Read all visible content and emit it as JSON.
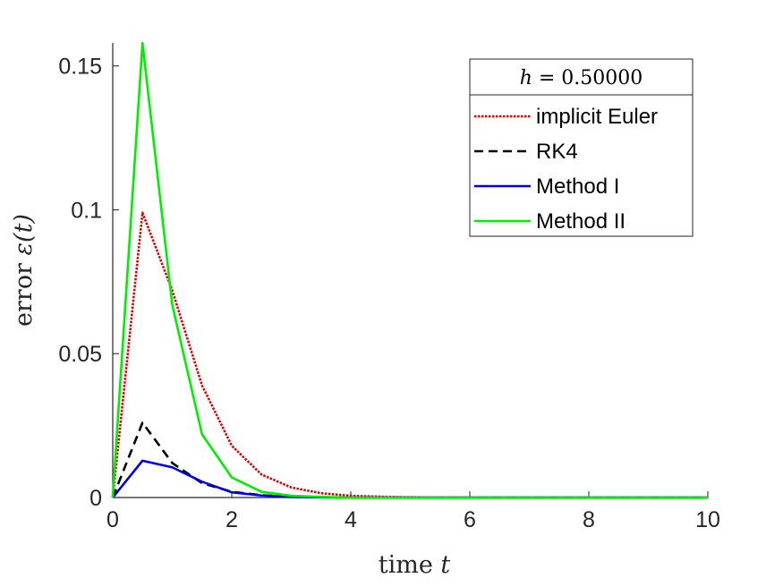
{
  "chart_data": {
    "type": "line",
    "xlabel_text": "time ",
    "xlabel_var": "t",
    "ylabel_text": "error ",
    "ylabel_var": "ε(t)",
    "xlim": [
      0,
      10
    ],
    "ylim": [
      0,
      0.158
    ],
    "xticks": [
      0,
      2,
      4,
      6,
      8,
      10
    ],
    "xtick_labels": [
      "0",
      "2",
      "4",
      "6",
      "8",
      "10"
    ],
    "yticks": [
      0,
      0.05,
      0.1,
      0.15
    ],
    "ytick_labels": [
      "0",
      "0.05",
      "0.1",
      "0.15"
    ],
    "grid": false,
    "legend": {
      "placement": "top-right",
      "title_var": "h",
      "title_rest": " = 0.50000"
    },
    "x": [
      0,
      0.5,
      1,
      1.5,
      2,
      2.5,
      3,
      3.5,
      4,
      4.5,
      5,
      5.5,
      6,
      6.5,
      7,
      7.5,
      8,
      8.5,
      9,
      9.5,
      10
    ],
    "series": [
      {
        "name": "implicit Euler",
        "color": "#e00000",
        "style": "dotted",
        "values": [
          0,
          0.099,
          0.072,
          0.039,
          0.018,
          0.008,
          0.0035,
          0.0015,
          0.0006,
          0.0003,
          0.0001,
          5e-05,
          0,
          0,
          0,
          0,
          0,
          0,
          0,
          0,
          0
        ]
      },
      {
        "name": "RK4",
        "color": "#000000",
        "style": "dashed",
        "values": [
          0,
          0.026,
          0.012,
          0.005,
          0.002,
          0.0008,
          0.0003,
          0.0001,
          0,
          0,
          0,
          0,
          0,
          0,
          0,
          0,
          0,
          0,
          0,
          0,
          0
        ]
      },
      {
        "name": "Method I",
        "color": "#0000dd",
        "style": "solid",
        "values": [
          0,
          0.0128,
          0.0105,
          0.0055,
          0.0018,
          0.0007,
          0.0002,
          0.0001,
          0,
          0,
          0,
          0,
          0,
          0,
          0,
          0,
          0,
          0,
          0,
          0,
          0
        ]
      },
      {
        "name": "Method II",
        "color": "#00ee00",
        "style": "solid",
        "values": [
          0,
          0.158,
          0.067,
          0.022,
          0.007,
          0.002,
          0.0006,
          0.0002,
          0,
          0,
          0,
          0,
          0,
          0,
          0,
          0,
          0,
          0,
          0,
          0,
          0
        ]
      }
    ]
  }
}
